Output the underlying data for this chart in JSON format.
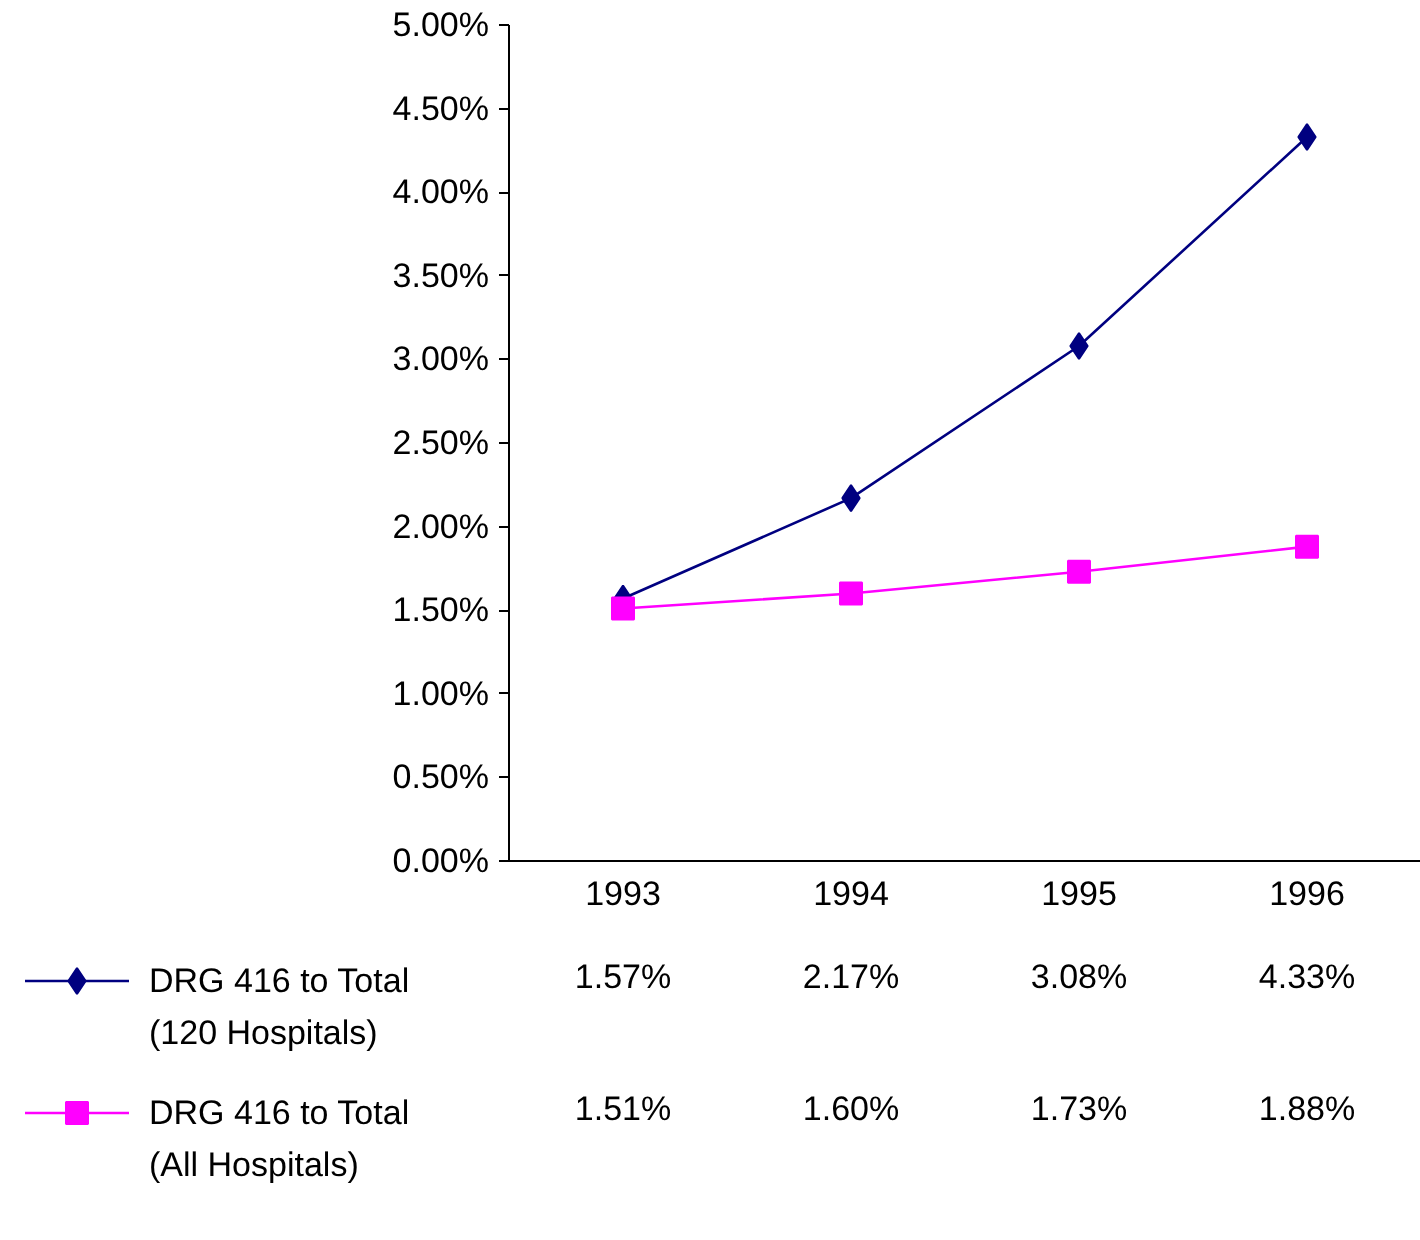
{
  "chart_data": {
    "type": "line",
    "categories": [
      "1993",
      "1994",
      "1995",
      "1996"
    ],
    "ylim": [
      0,
      5
    ],
    "yticks": [
      {
        "value": 0,
        "label": "0.00%"
      },
      {
        "value": 0.5,
        "label": "0.50%"
      },
      {
        "value": 1,
        "label": "1.00%"
      },
      {
        "value": 1.5,
        "label": "1.50%"
      },
      {
        "value": 2,
        "label": "2.00%"
      },
      {
        "value": 2.5,
        "label": "2.50%"
      },
      {
        "value": 3,
        "label": "3.00%"
      },
      {
        "value": 3.5,
        "label": "3.50%"
      },
      {
        "value": 4,
        "label": "4.00%"
      },
      {
        "value": 4.5,
        "label": "4.50%"
      },
      {
        "value": 5,
        "label": "5.00%"
      }
    ],
    "series": [
      {
        "name": "DRG 416 to Total\n(120 Hospitals)",
        "color": "#000080",
        "marker": "diamond",
        "values": [
          1.57,
          2.17,
          3.08,
          4.33
        ],
        "value_labels": [
          "1.57%",
          "2.17%",
          "3.08%",
          "4.33%"
        ]
      },
      {
        "name": "DRG 416 to Total\n(All Hospitals)",
        "color": "#ff00ff",
        "marker": "square",
        "values": [
          1.51,
          1.6,
          1.73,
          1.88
        ],
        "value_labels": [
          "1.51%",
          "1.60%",
          "1.73%",
          "1.88%"
        ]
      }
    ],
    "grid": false,
    "legend": "bottom",
    "line_style": "solid"
  }
}
